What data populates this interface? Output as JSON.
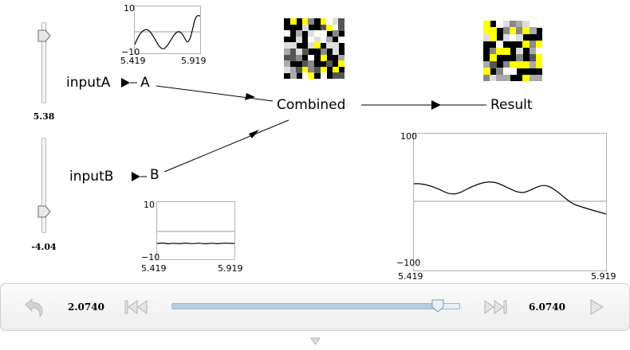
{
  "sliders": [
    {
      "value_label": "5.38",
      "level": 5.38
    },
    {
      "value_label": "-4.04",
      "level": -4.04
    }
  ],
  "nodes": {
    "inputA": "inputA",
    "A": "A",
    "inputB": "inputB",
    "B": "B",
    "combined": "Combined",
    "result": "Result"
  },
  "plots": {
    "A": {
      "ymax": "10",
      "ymin": "−10",
      "xmin": "5.419",
      "xmax": "5.919"
    },
    "B": {
      "ymax": "10",
      "ymin": "−10",
      "xmin": "5.419",
      "xmax": "5.919"
    },
    "result": {
      "ymax": "100",
      "ymin": "−100",
      "xmin": "5.419",
      "xmax": "5.919"
    }
  },
  "controls": {
    "start_time": "2.0740",
    "end_time": "6.0740",
    "progress_fraction": 0.93,
    "undo_icon": "undo-icon",
    "rewind_icon": "skip-to-start-icon",
    "forward_icon": "skip-to-end-icon",
    "play_icon": "play-icon"
  },
  "colors": {
    "spike_yellow": "#ffff00",
    "spike_gray": "#999999"
  }
}
